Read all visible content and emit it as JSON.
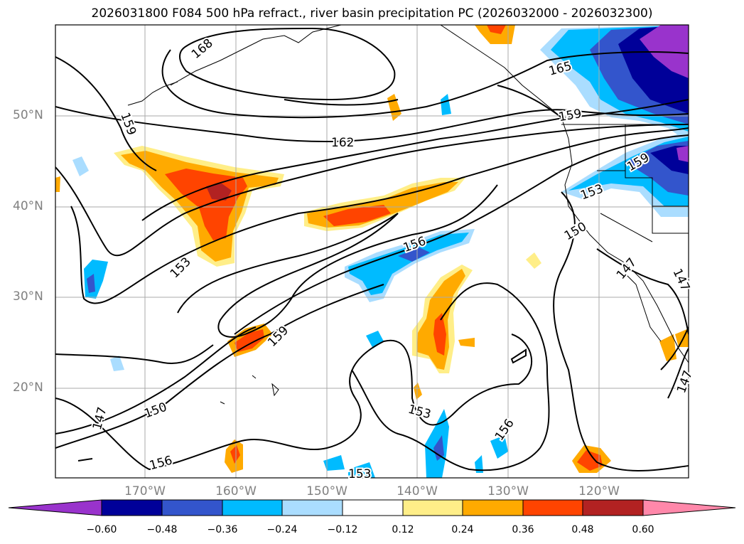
{
  "title": "2026031800 F084 500 hPa refract., river basin precipitation PC (2026032000 - 2026032300)",
  "map": {
    "lat_labels": [
      "50°N",
      "40°N",
      "30°N",
      "20°N"
    ],
    "lon_labels": [
      "170°W",
      "160°W",
      "150°W",
      "140°W",
      "130°W",
      "120°W"
    ],
    "contour_labels": [
      "168",
      "165",
      "162",
      "159",
      "159",
      "159",
      "159",
      "156",
      "156",
      "156",
      "153",
      "153",
      "153",
      "153",
      "150",
      "150",
      "147",
      "147",
      "147",
      "147"
    ],
    "contour_color": "#000000",
    "grid": true
  },
  "colorbar": {
    "ticks": [
      "−0.60",
      "−0.48",
      "−0.36",
      "−0.24",
      "−0.12",
      "0.12",
      "0.24",
      "0.36",
      "0.48",
      "0.60"
    ],
    "colors": [
      "#9933cc",
      "#000099",
      "#3355cc",
      "#00bbff",
      "#aaddff",
      "#ffffff",
      "#ffee88",
      "#ffaa00",
      "#ff4400",
      "#b22222",
      "#ff88aa"
    ]
  }
}
